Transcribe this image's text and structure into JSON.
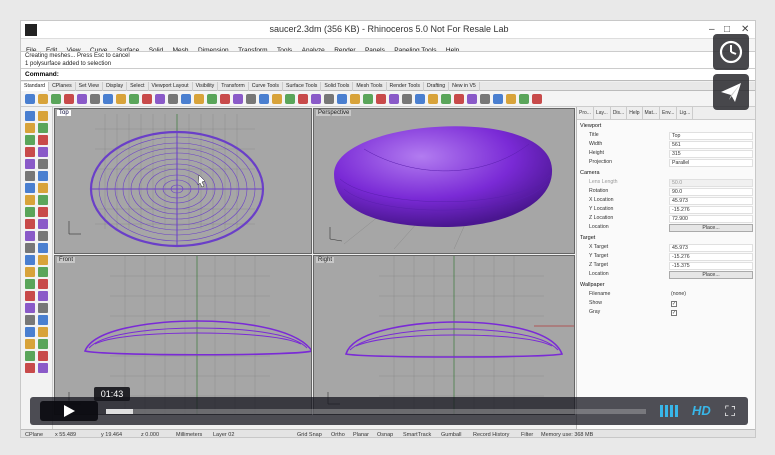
{
  "window": {
    "title": "saucer2.3dm (356 KB) - Rhinoceros 5.0 Not For Resale Lab"
  },
  "menu": [
    "File",
    "Edit",
    "View",
    "Curve",
    "Surface",
    "Solid",
    "Mesh",
    "Dimension",
    "Transform",
    "Tools",
    "Analyze",
    "Render",
    "Panels",
    "Paneling Tools",
    "Help"
  ],
  "command_history": [
    "Creating meshes... Press Esc to cancel",
    "1 polysurface added to selection"
  ],
  "command_label": "Command:",
  "toolbar_tabs": [
    "Standard",
    "CPlanes",
    "Set View",
    "Display",
    "Select",
    "Viewport Layout",
    "Visibility",
    "Transform",
    "Curve Tools",
    "Surface Tools",
    "Solid Tools",
    "Mesh Tools",
    "Render Tools",
    "Drafting",
    "New in V5"
  ],
  "viewports": {
    "top": "Top",
    "perspective": "Perspective",
    "front": "Front",
    "right": "Right"
  },
  "panel": {
    "tabs": [
      "Pro...",
      "Lay...",
      "Dis...",
      "Help",
      "Mat...",
      "Env...",
      "Lig..."
    ],
    "viewport_section": "Viewport",
    "viewport_rows": [
      {
        "key": "Title",
        "value": "Top"
      },
      {
        "key": "Width",
        "value": "561"
      },
      {
        "key": "Height",
        "value": "315"
      },
      {
        "key": "Projection",
        "value": "Parallel"
      }
    ],
    "camera_section": "Camera",
    "camera_rows": [
      {
        "key": "Lens Length",
        "value": "50.0"
      },
      {
        "key": "Rotation",
        "value": "90.0"
      },
      {
        "key": "X Location",
        "value": "45.973"
      },
      {
        "key": "Y Location",
        "value": "-15.276"
      },
      {
        "key": "Z Location",
        "value": "72.900"
      },
      {
        "key": "Location",
        "value": "Place..."
      }
    ],
    "target_section": "Target",
    "target_rows": [
      {
        "key": "X Target",
        "value": "45.973"
      },
      {
        "key": "Y Target",
        "value": "-15.276"
      },
      {
        "key": "Z Target",
        "value": "-15.375"
      },
      {
        "key": "Location",
        "value": "Place..."
      }
    ],
    "wallpaper_section": "Wallpaper",
    "wallpaper_rows": [
      {
        "key": "Filename",
        "value": "(none)"
      },
      {
        "key": "Show",
        "value": "✓"
      },
      {
        "key": "Gray",
        "value": "✓"
      }
    ]
  },
  "status": {
    "cplane": "CPlane",
    "x": "x 55.489",
    "y": "y 19.464",
    "z": "z 0.000",
    "units": "Millimeters",
    "layer": "Layer 02",
    "grid_snap": "Grid Snap",
    "ortho": "Ortho",
    "planar": "Planar",
    "osnap": "Osnap",
    "smarttrack": "SmartTrack",
    "gumball": "Gumball",
    "record_history": "Record History",
    "filter": "Filter",
    "memory": "Memory use: 368 MB"
  },
  "video": {
    "time": "01:43",
    "progress": 0.05,
    "hd_label": "HD"
  },
  "colors": {
    "object": "#7a2ad6",
    "viewport_bg": "#a6a6a6",
    "accent": "#38b6e8"
  }
}
